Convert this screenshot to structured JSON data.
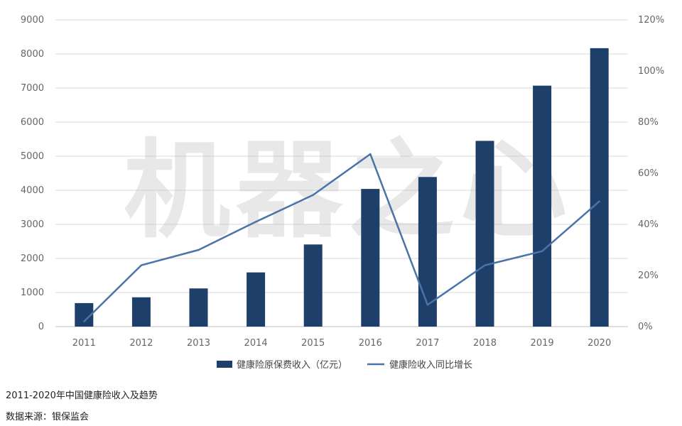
{
  "watermark": "机器之心",
  "caption": "2011-2020年中国健康险收入及趋势",
  "source": "数据来源：银保监会",
  "colors": {
    "bar": "#1f3f6b",
    "line": "#4a73a8",
    "grid": "#d9d9d9",
    "axis": "#bfbfbf"
  },
  "chart_data": {
    "type": "bar",
    "categories": [
      "2011",
      "2012",
      "2013",
      "2014",
      "2015",
      "2016",
      "2017",
      "2018",
      "2019",
      "2020"
    ],
    "series": [
      {
        "name": "健康险原保费收入（亿元）",
        "type": "bar",
        "axis": "left",
        "values": [
          690,
          860,
          1120,
          1590,
          2410,
          4040,
          4390,
          5450,
          7070,
          8170
        ]
      },
      {
        "name": "健康险收入同比增长",
        "type": "line",
        "axis": "right",
        "values": [
          0.02,
          0.24,
          0.3,
          0.41,
          0.515,
          0.675,
          0.085,
          0.24,
          0.295,
          0.49
        ]
      }
    ],
    "ylim": [
      0,
      9000
    ],
    "yticks": [
      "0",
      "1000",
      "2000",
      "3000",
      "4000",
      "5000",
      "6000",
      "7000",
      "8000",
      "9000"
    ],
    "y2lim": [
      0,
      1.2
    ],
    "y2ticks": [
      "0%",
      "20%",
      "40%",
      "60%",
      "80%",
      "100%",
      "120%"
    ],
    "grid": true,
    "legend": "bottom"
  }
}
